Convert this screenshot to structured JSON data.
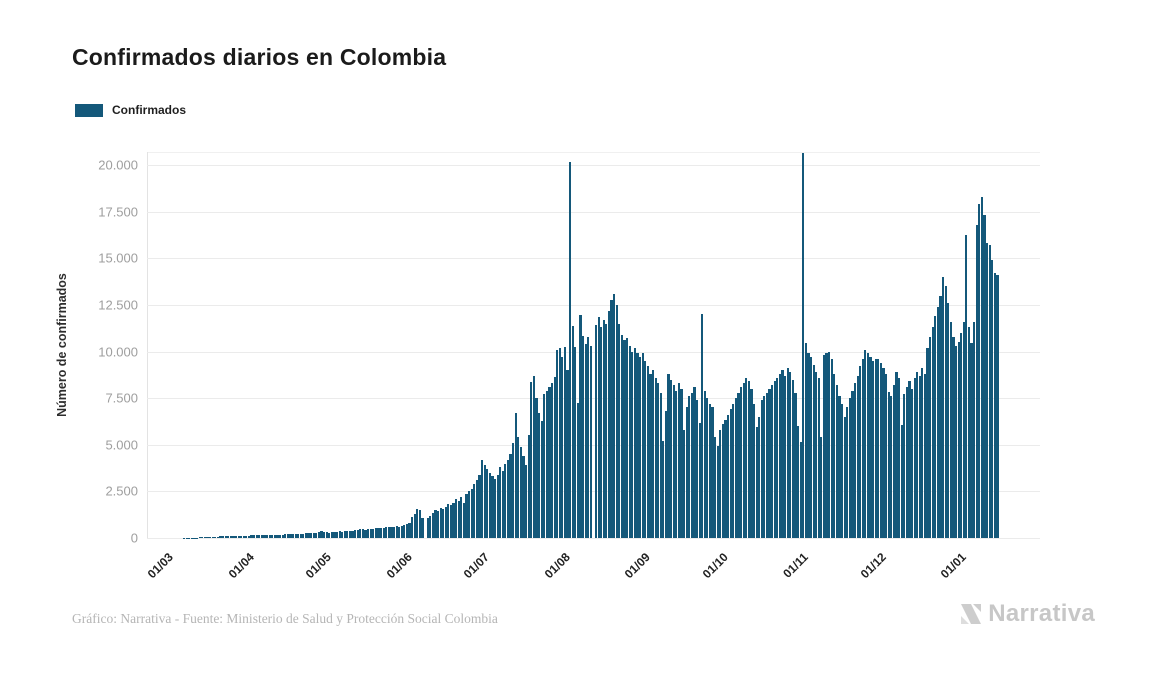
{
  "page": {
    "title": "Confirmados diarios en Colombia",
    "legend": {
      "label": "Confirmados",
      "color": "#14587a"
    },
    "footer": {
      "credit": "Gráfico: Narrativa - Fuente: Ministerio de Salud y Protección Social Colombia"
    },
    "brand": {
      "name": "Narrativa",
      "color": "#c7c7c7"
    }
  },
  "chart_data": {
    "type": "bar",
    "title": "Confirmados diarios en Colombia",
    "series_name": "Confirmados",
    "ylabel": "Número de confirmados",
    "xlabel": "",
    "bar_color": "#14587a",
    "grid": true,
    "legend_position": "top-left",
    "ylim": [
      0,
      20700
    ],
    "yticks": [
      0,
      2500,
      5000,
      7500,
      10000,
      12500,
      15000,
      17500,
      20000
    ],
    "ytick_labels": [
      "0",
      "2.500",
      "5.000",
      "7.500",
      "10.000",
      "12.500",
      "15.000",
      "17.500",
      "20.000"
    ],
    "x_unit": "day (2020-03-01 onward)",
    "x_month_ticks": [
      {
        "label": "01/03",
        "index": 0
      },
      {
        "label": "01/04",
        "index": 31
      },
      {
        "label": "01/05",
        "index": 61
      },
      {
        "label": "01/06",
        "index": 92
      },
      {
        "label": "01/07",
        "index": 122
      },
      {
        "label": "01/08",
        "index": 153
      },
      {
        "label": "01/09",
        "index": 184
      },
      {
        "label": "01/10",
        "index": 214
      },
      {
        "label": "01/11",
        "index": 245
      },
      {
        "label": "01/12",
        "index": 275
      },
      {
        "label": "01/01",
        "index": 306
      }
    ],
    "values": [
      0,
      0,
      0,
      0,
      0,
      2,
      4,
      7,
      10,
      14,
      18,
      22,
      27,
      32,
      38,
      44,
      50,
      57,
      63,
      70,
      78,
      88,
      97,
      106,
      115,
      104,
      98,
      110,
      118,
      126,
      133,
      128,
      120,
      138,
      146,
      150,
      158,
      150,
      144,
      165,
      172,
      180,
      174,
      168,
      188,
      182,
      198,
      192,
      208,
      204,
      225,
      218,
      238,
      232,
      255,
      248,
      275,
      268,
      295,
      318,
      352,
      325,
      300,
      285,
      312,
      332,
      342,
      356,
      341,
      366,
      381,
      362,
      396,
      422,
      452,
      498,
      472,
      442,
      482,
      466,
      496,
      522,
      546,
      512,
      562,
      586,
      602,
      572,
      616,
      642,
      612,
      632,
      702,
      762,
      822,
      1102,
      1302,
      1562,
      1482,
      1052,
      0,
      1082,
      1202,
      1352,
      1502,
      1422,
      1602,
      1552,
      1682,
      1802,
      1752,
      1902,
      2102,
      2002,
      2202,
      1862,
      2352,
      2502,
      2652,
      2902,
      3102,
      3402,
      4180,
      3900,
      3700,
      3500,
      3300,
      3150,
      3400,
      3800,
      3600,
      3950,
      4200,
      4500,
      5100,
      6700,
      5400,
      4900,
      4400,
      3900,
      5500,
      8370,
      8700,
      7500,
      6700,
      6300,
      7700,
      7900,
      8100,
      8300,
      8650,
      10080,
      10170,
      9700,
      10260,
      9010,
      20140,
      11370,
      10270,
      7220,
      11960,
      10840,
      10400,
      10800,
      10300,
      0,
      11430,
      11870,
      11300,
      11700,
      11500,
      12200,
      12770,
      13090,
      12500,
      11500,
      10900,
      10600,
      10700,
      10300,
      10000,
      10200,
      9900,
      9700,
      9900,
      9500,
      9200,
      8800,
      9000,
      8600,
      8300,
      7800,
      5200,
      6800,
      8800,
      8500,
      8200,
      7900,
      8300,
      8000,
      5800,
      7000,
      7600,
      7800,
      8100,
      7400,
      6150,
      12010,
      7900,
      7500,
      7200,
      7000,
      5400,
      4940,
      5794,
      6100,
      6330,
      6600,
      6900,
      7200,
      7500,
      7800,
      8100,
      8300,
      8565,
      8400,
      8000,
      7200,
      5973,
      6500,
      7402,
      7600,
      7800,
      8000,
      8200,
      8400,
      8600,
      8800,
      9012,
      8700,
      9102,
      8900,
      8500,
      7800,
      6000,
      5168,
      20637,
      10443,
      9907,
      9700,
      9300,
      8900,
      8600,
      5436,
      9800,
      9907,
      10000,
      9600,
      8800,
      8200,
      7600,
      7200,
      6509,
      7045,
      7500,
      7900,
      8300,
      8700,
      9200,
      9600,
      10086,
      9907,
      9700,
      9500,
      9612,
      9600,
      9400,
      9100,
      8800,
      7840,
      7600,
      8200,
      8900,
      8600,
      6061,
      7700,
      8100,
      8400,
      8000,
      8600,
      8900,
      8700,
      9100,
      8800,
      10200,
      10800,
      11300,
      11900,
      12400,
      13000,
      14021,
      13500,
      12600,
      11600,
      10800,
      10300,
      10500,
      11000,
      11600,
      16257,
      11300,
      10450,
      11600,
      16793,
      17900,
      18314,
      17330,
      15810,
      15720,
      14920,
      14200,
      14110
    ]
  }
}
